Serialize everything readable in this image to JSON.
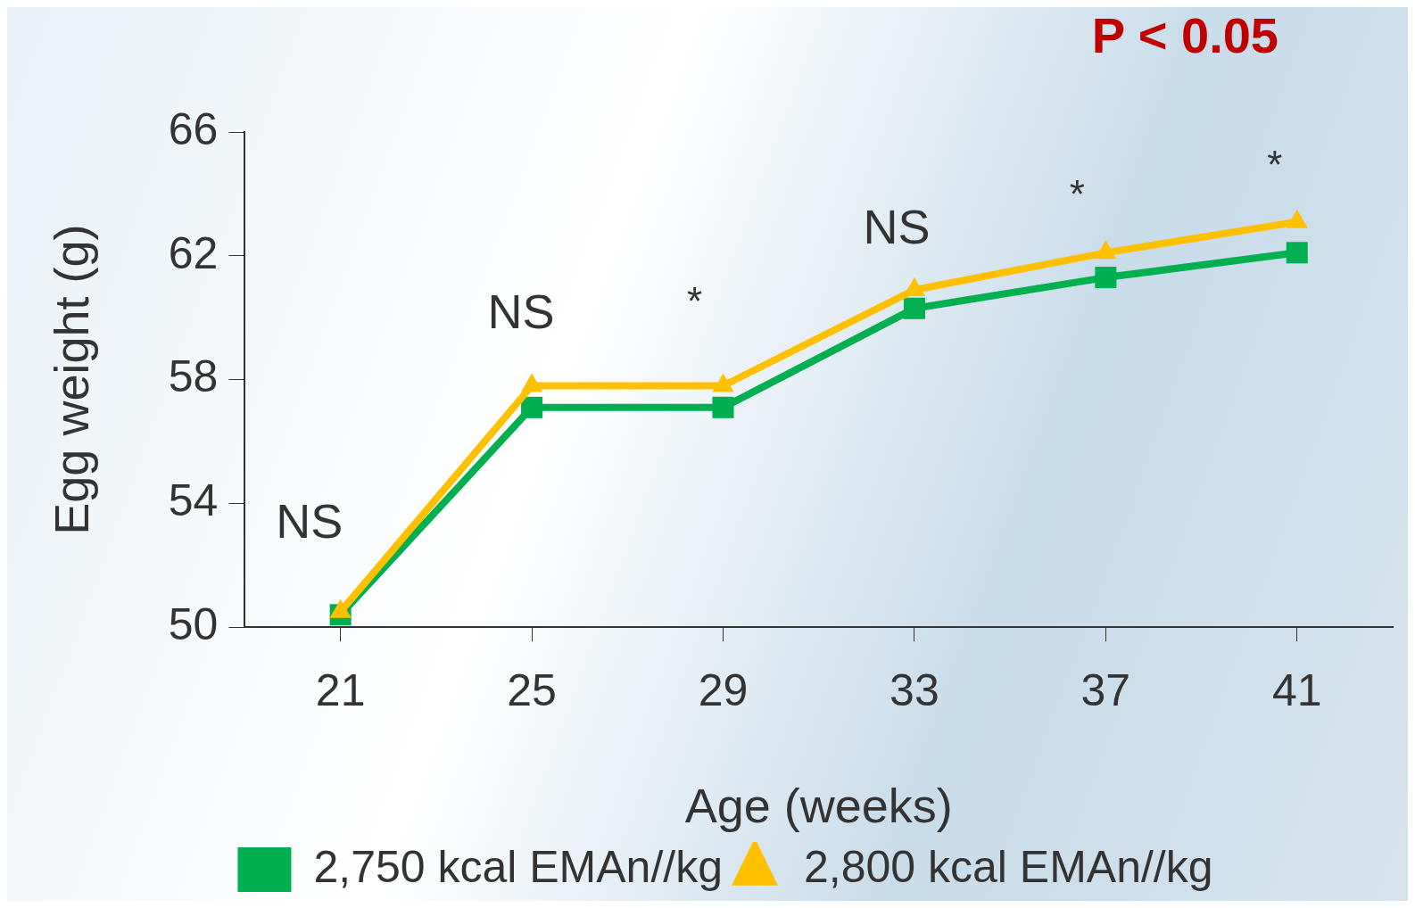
{
  "chart_data": {
    "type": "line",
    "xlabel": "Age (weeks)",
    "ylabel": "Egg weight (g)",
    "categories": [
      "21",
      "25",
      "29",
      "33",
      "37",
      "41"
    ],
    "ylim": [
      50,
      66
    ],
    "yticks": [
      50,
      54,
      58,
      62,
      66
    ],
    "grid": false,
    "legend": "bottom",
    "line_style": "solid",
    "series": [
      {
        "name": "2,750 kcal EMAn//kg",
        "color": "#00b050",
        "marker": "square",
        "values": [
          50.4,
          57.1,
          57.1,
          60.3,
          61.3,
          62.1
        ]
      },
      {
        "name": "2,800 kcal EMAn//kg",
        "color": "#ffc000",
        "marker": "triangle",
        "values": [
          50.5,
          57.8,
          57.8,
          60.9,
          62.1,
          63.1
        ]
      }
    ],
    "annotations": [
      "NS",
      "NS",
      "*",
      "NS",
      "*",
      "*",
      "P < 0.05"
    ]
  }
}
